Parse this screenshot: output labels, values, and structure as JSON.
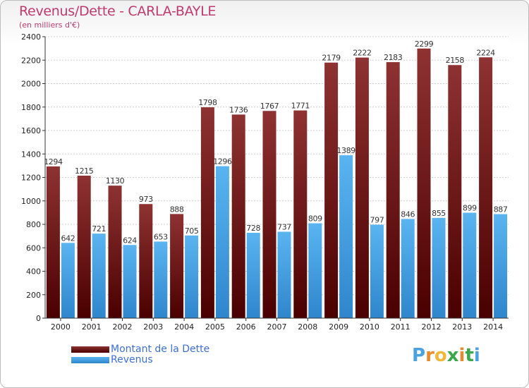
{
  "title": "Revenus/Dette - CARLA-BAYLE",
  "subtitle": "(en milliers d'€)",
  "logo": {
    "text": "Proxiti",
    "letters": [
      "P",
      "r",
      "o",
      "x",
      "i",
      "t",
      "i"
    ],
    "colors": [
      "#4aa3df",
      "#e8892b",
      "#f0b83a",
      "#3aa84a",
      "#e8892b",
      "#3aa84a",
      "#4aa3df"
    ]
  },
  "legend": [
    {
      "label": "Montant de la Dette",
      "color": "#7a1818"
    },
    {
      "label": "Revenus",
      "color": "#4aa3e6"
    }
  ],
  "chart_data": {
    "type": "bar",
    "title": "Revenus/Dette - CARLA-BAYLE",
    "subtitle": "(en milliers d'€)",
    "categories": [
      "2000",
      "2001",
      "2002",
      "2003",
      "2004",
      "2005",
      "2006",
      "2007",
      "2008",
      "2009",
      "2010",
      "2011",
      "2012",
      "2013",
      "2014"
    ],
    "series": [
      {
        "name": "Montant de la Dette",
        "color": "#7a1818",
        "values": [
          1294,
          1215,
          1130,
          973,
          888,
          1798,
          1736,
          1767,
          1771,
          2179,
          2222,
          2183,
          2299,
          2158,
          2224
        ]
      },
      {
        "name": "Revenus",
        "color": "#4aa3e6",
        "values": [
          642,
          721,
          624,
          653,
          705,
          1296,
          728,
          737,
          809,
          1389,
          797,
          846,
          855,
          899,
          887
        ]
      }
    ],
    "ylim": [
      0,
      2400
    ],
    "yticks": [
      0,
      200,
      400,
      600,
      800,
      1000,
      1200,
      1400,
      1600,
      1800,
      2000,
      2200,
      2400
    ],
    "grid": true,
    "legend_position": "bottom-left"
  }
}
